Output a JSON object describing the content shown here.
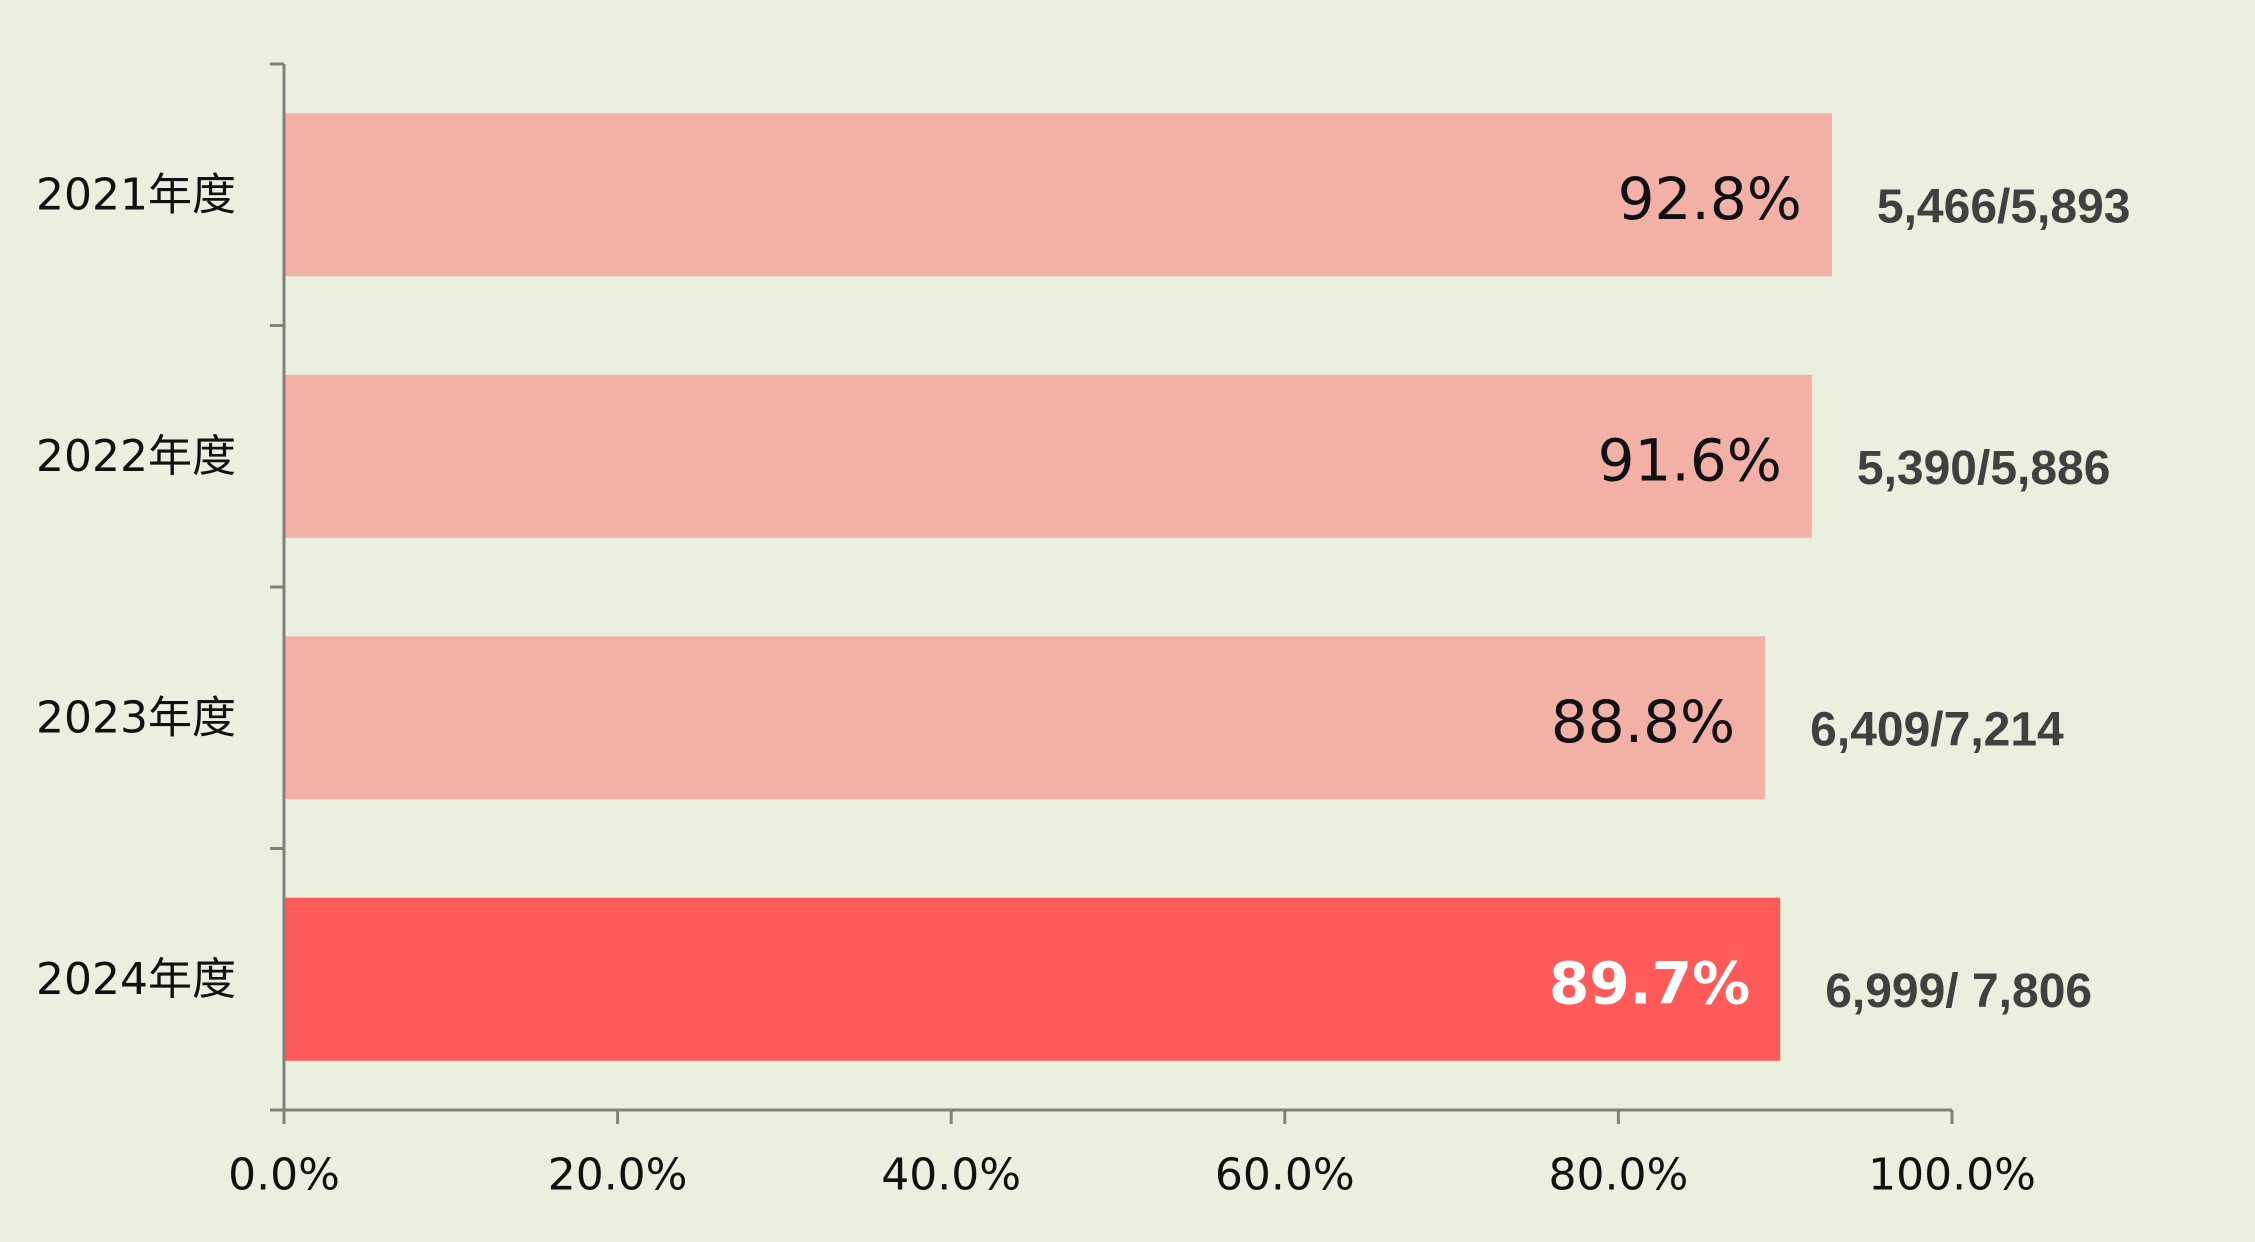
{
  "chart_data": {
    "type": "bar",
    "orientation": "horizontal",
    "categories": [
      "2021年度",
      "2022年度",
      "2023年度",
      "2024年度"
    ],
    "values": [
      92.8,
      91.6,
      88.8,
      89.7
    ],
    "value_labels": [
      "92.8%",
      "91.6%",
      "88.8%",
      "89.7%"
    ],
    "count_labels": [
      "5,466/5,893",
      "5,390/5,886",
      "6,409/7,214",
      "6,999/ 7,806"
    ],
    "highlight_index": 3,
    "xlim": [
      0,
      100
    ],
    "xticks": [
      0,
      20,
      40,
      60,
      80,
      100
    ],
    "xtick_labels": [
      "0.0%",
      "20.0%",
      "40.0%",
      "60.0%",
      "80.0%",
      "100.0%"
    ],
    "title": "",
    "xlabel": "",
    "ylabel": "",
    "grid": false,
    "legend": "none",
    "colors": {
      "background": "#ebefde",
      "bar": "#f2b0a6",
      "bar_highlight": "#ff5a5a",
      "axis": "#808080",
      "count_text": "#404040"
    }
  }
}
